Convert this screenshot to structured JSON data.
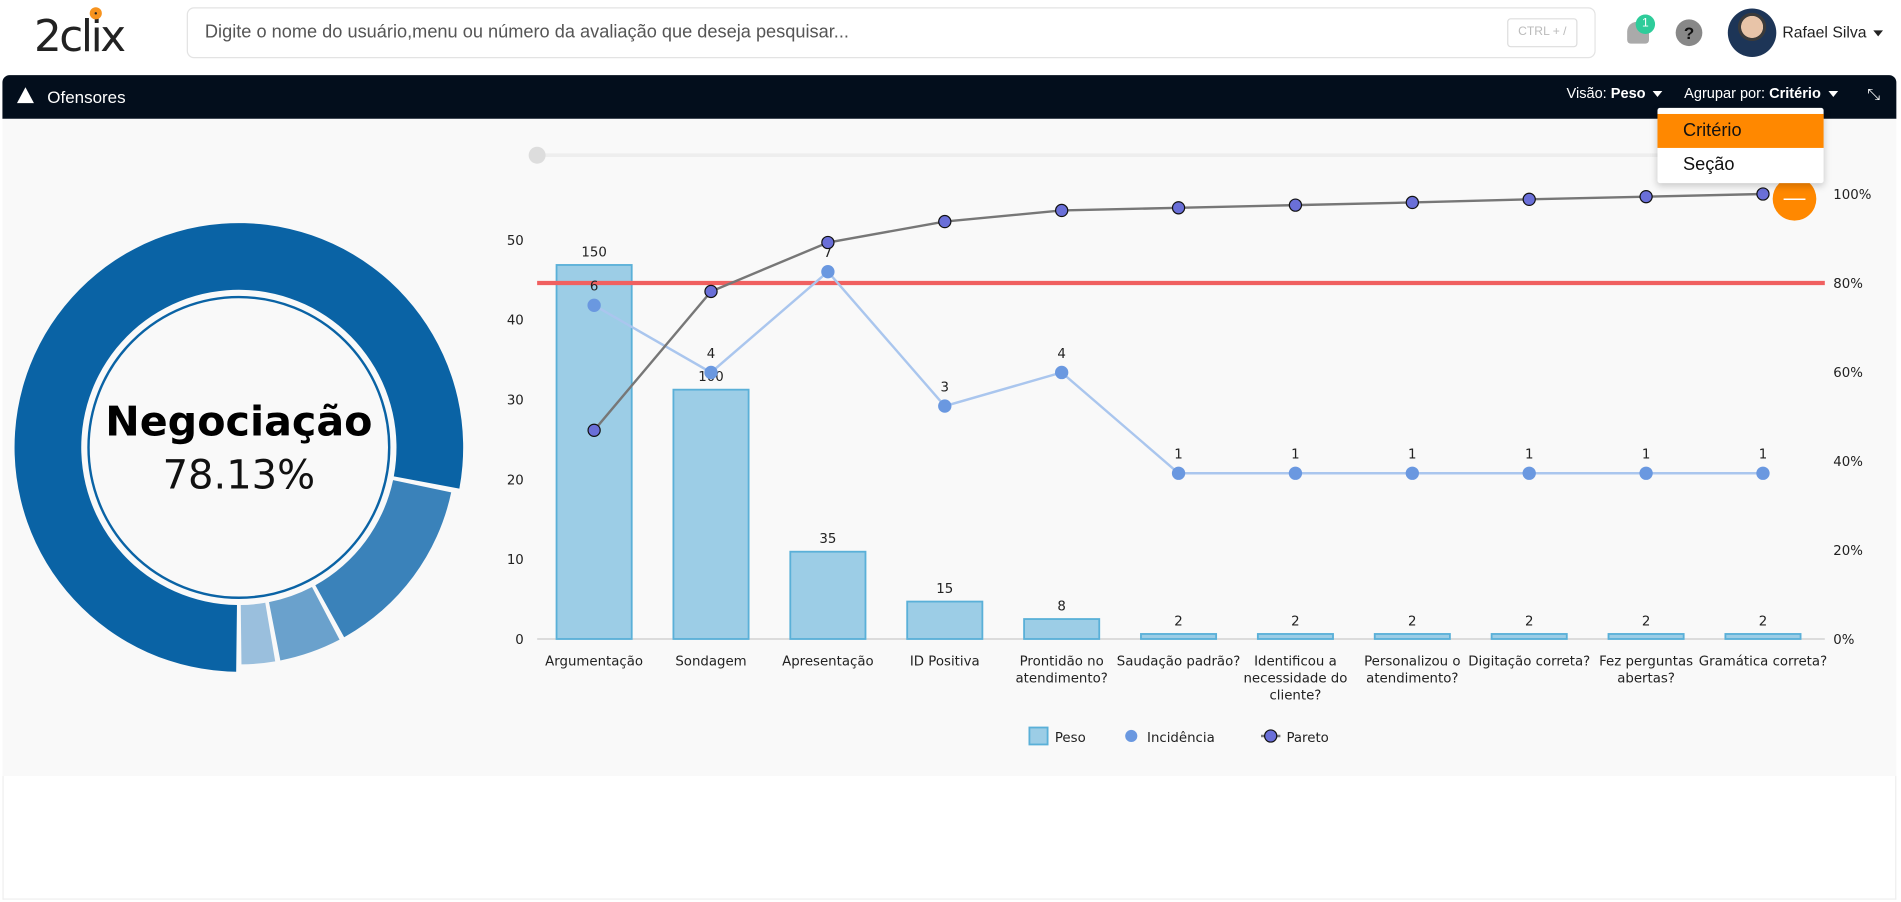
{
  "app": {
    "logo": "2clix",
    "search_placeholder": "Digite o nome do usuário,menu ou número da avaliação que deseja pesquisar...",
    "shortcut": "CTRL + /",
    "notifications": "1",
    "help": "?",
    "user": "Rafael Silva"
  },
  "card": {
    "title": "Ofensores",
    "visao_label": "Visão:",
    "visao_value": "Peso",
    "agrupar_label": "Agrupar por:",
    "agrupar_value": "Critério",
    "menu": [
      "Critério",
      "Seção"
    ],
    "expand_icon": "compress-icon"
  },
  "donut": {
    "title": "Negociação",
    "value": "78.13%",
    "slices": [
      78.13,
      14.0,
      5.0,
      2.87
    ],
    "colors": [
      "#0a63a5",
      "#3a82ba",
      "#6aa1cc",
      "#9abfdd"
    ]
  },
  "chart_data": {
    "type": "bar",
    "categories": [
      "Argumentação",
      "Sondagem",
      "Apresentação",
      "ID Positiva",
      "Prontidão no atendimento?",
      "Saudação padrão?",
      "Identificou a necessidade do cliente?",
      "Personalizou o atendimento?",
      "Digitação correta?",
      "Fez perguntas abertas?",
      "Gramática correta?"
    ],
    "category_lines": [
      [
        "Argumentação"
      ],
      [
        "Sondagem"
      ],
      [
        "Apresentação"
      ],
      [
        "ID Positiva"
      ],
      [
        "Prontidão no",
        "atendimento?"
      ],
      [
        "Saudação padrão?"
      ],
      [
        "Identificou a",
        "necessidade do",
        "cliente?"
      ],
      [
        "Personalizou o",
        "atendimento?"
      ],
      [
        "Digitação correta?"
      ],
      [
        "Fez perguntas",
        "abertas?"
      ],
      [
        "Gramática correta?"
      ]
    ],
    "series": [
      {
        "name": "Peso",
        "type": "bar",
        "labels": [
          150,
          100,
          35,
          15,
          8,
          2,
          2,
          2,
          2,
          2,
          2
        ],
        "values": [
          46.88,
          31.25,
          10.94,
          4.69,
          2.5,
          0.63,
          0.63,
          0.63,
          0.63,
          0.63,
          0.63
        ],
        "color": "#9ccde6"
      },
      {
        "name": "Incidência",
        "type": "line",
        "values": [
          6,
          4,
          7,
          3,
          4,
          1,
          1,
          1,
          1,
          1,
          1
        ],
        "color": "#6a98e0"
      },
      {
        "name": "Pareto",
        "type": "line",
        "values": [
          46.9,
          78.1,
          89.1,
          93.8,
          96.3,
          96.9,
          97.5,
          98.1,
          98.8,
          99.4,
          100
        ],
        "color": "#6a6fd8"
      }
    ],
    "threshold": 80,
    "threshold_color": "#f06060",
    "y_left": {
      "ticks": [
        0,
        10,
        20,
        30,
        40,
        50
      ]
    },
    "y_right": {
      "ticks": [
        "0%",
        "20%",
        "40%",
        "60%",
        "80%",
        "100%"
      ]
    },
    "legend": [
      "Peso",
      "Incidência",
      "Pareto"
    ],
    "legend_position": "bottom"
  }
}
